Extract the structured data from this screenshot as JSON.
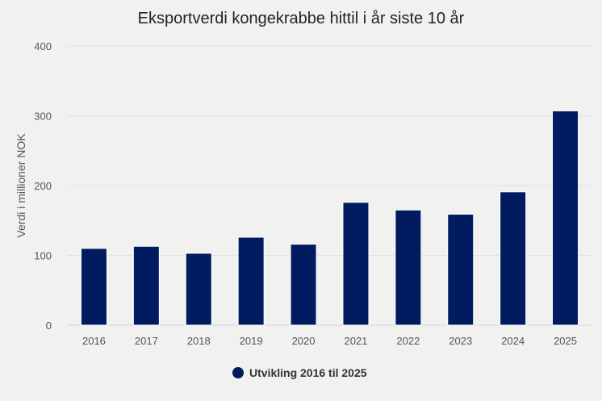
{
  "chart_data": {
    "type": "bar",
    "title": "Eksportverdi kongekrabbe hittil i år siste 10 år",
    "xlabel": "",
    "ylabel": "Verdi i millioner NOK",
    "categories": [
      "2016",
      "2017",
      "2018",
      "2019",
      "2020",
      "2021",
      "2022",
      "2023",
      "2024",
      "2025"
    ],
    "series": [
      {
        "name": "Utvikling 2016 til 2025",
        "values": [
          110,
          113,
          103,
          126,
          116,
          176,
          165,
          159,
          191,
          307
        ],
        "color": "#001b60"
      }
    ],
    "ylim": [
      0,
      400
    ],
    "yticks": [
      0,
      100,
      200,
      300,
      400
    ],
    "grid": true,
    "legend": "bottom-center"
  }
}
